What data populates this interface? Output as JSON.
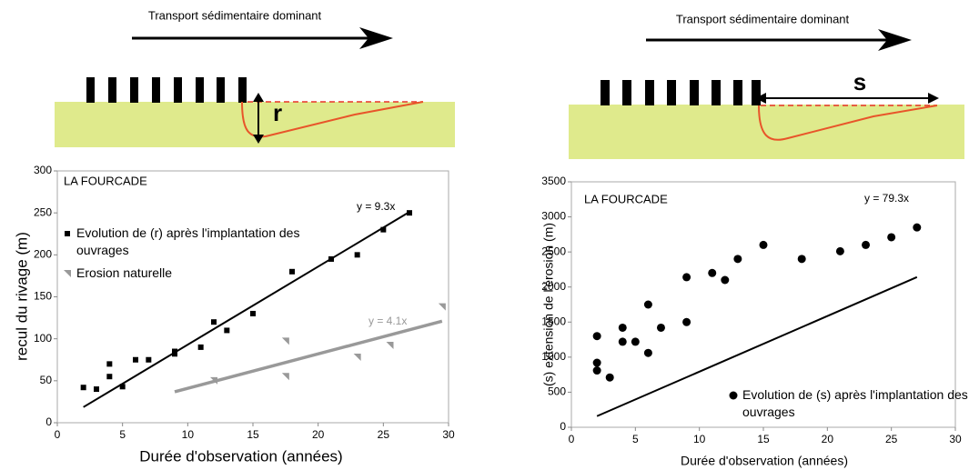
{
  "diagrams": [
    {
      "caption": "Transport sédimentaire dominant",
      "label": "r"
    },
    {
      "caption": "Transport sédimentaire dominant",
      "label": "s"
    }
  ],
  "chart_data": [
    {
      "type": "scatter",
      "title": "LA FOURCADE",
      "x_label": "Durée d'observation (années)",
      "y_label": "recul du rivage (m)",
      "xlim": [
        0,
        30
      ],
      "xticks": [
        0,
        5,
        10,
        15,
        20,
        25,
        30
      ],
      "ylim": [
        0,
        300
      ],
      "yticks": [
        0,
        50,
        100,
        150,
        200,
        250,
        300
      ],
      "grid": false,
      "series": [
        {
          "name": "Evolution de (r) après l'implantation des ouvrages",
          "color": "#000000",
          "marker": "square",
          "x": [
            2,
            3,
            4,
            4,
            5,
            6,
            7,
            9,
            9,
            11,
            12,
            13,
            15,
            18,
            21,
            23,
            25,
            27
          ],
          "values": [
            42,
            40,
            55,
            70,
            43,
            75,
            75,
            85,
            82,
            90,
            120,
            110,
            130,
            180,
            195,
            200,
            230,
            250
          ]
        },
        {
          "name": "Erosion naturelle",
          "color": "#999999",
          "marker": "triangle",
          "x": [
            12,
            17.5,
            17.5,
            23,
            25.5,
            29.5
          ],
          "values": [
            50,
            97,
            55,
            78,
            92,
            138
          ]
        }
      ],
      "trendlines": [
        {
          "value": 9.3,
          "label": "y = 9.3x",
          "color": "#000000",
          "xlim": [
            2,
            27
          ]
        },
        {
          "value": 4.1,
          "label": "y = 4.1x",
          "color": "#999999",
          "xlim": [
            9,
            29.5
          ]
        }
      ]
    },
    {
      "type": "scatter",
      "title": "LA FOURCADE",
      "x_label": "Durée d'observation (années)",
      "y_label": "(s) extension de l'érosion (m)",
      "xlim": [
        0,
        30
      ],
      "xticks": [
        0,
        5,
        10,
        15,
        20,
        25,
        30
      ],
      "ylim": [
        0,
        3500
      ],
      "yticks": [
        0,
        500,
        1000,
        1500,
        2000,
        2500,
        3000,
        3500
      ],
      "grid": false,
      "series": [
        {
          "name": "Evolution de (s) après l'implantation des ouvrages",
          "color": "#000000",
          "marker": "circle",
          "x": [
            2,
            2,
            2,
            3,
            4,
            4,
            5,
            6,
            6,
            7,
            9,
            9,
            11,
            12,
            13,
            15,
            18,
            21,
            23,
            25,
            27
          ],
          "values": [
            1300,
            920,
            810,
            710,
            1420,
            1220,
            1220,
            1750,
            1060,
            1420,
            2140,
            1500,
            2200,
            2100,
            2400,
            2600,
            2400,
            2510,
            2600,
            2710,
            2850
          ]
        }
      ],
      "trendlines": [
        {
          "value": 79.3,
          "label": "y = 79.3x",
          "color": "#000000",
          "xlim": [
            2,
            27
          ]
        }
      ]
    }
  ]
}
